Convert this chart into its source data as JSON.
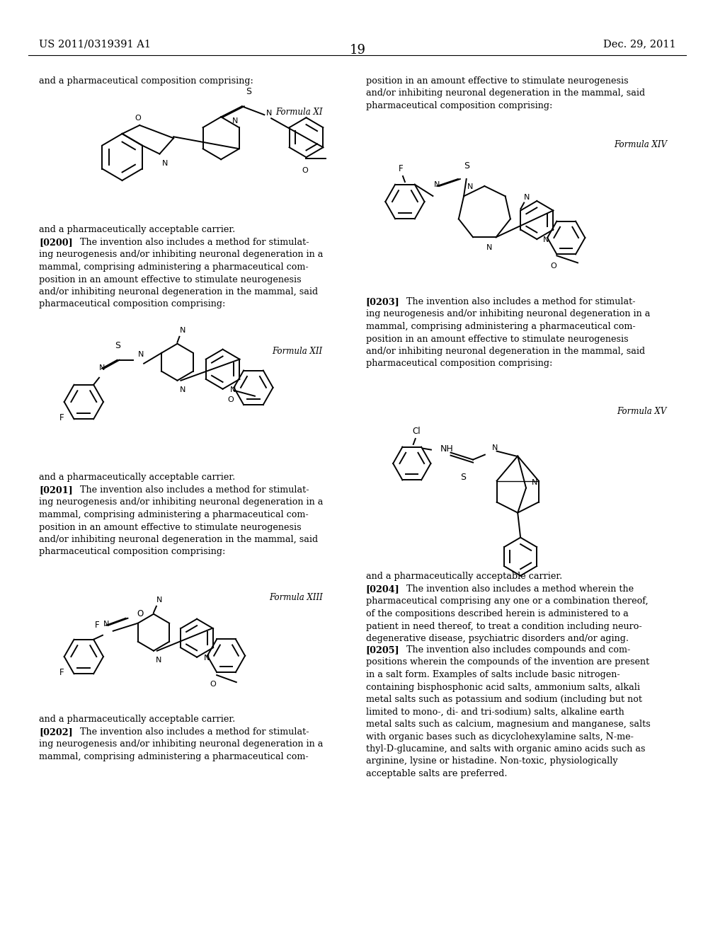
{
  "background_color": "#ffffff",
  "header_left": "US 2011/0319391 A1",
  "header_center": "19",
  "header_right": "Dec. 29, 2011"
}
